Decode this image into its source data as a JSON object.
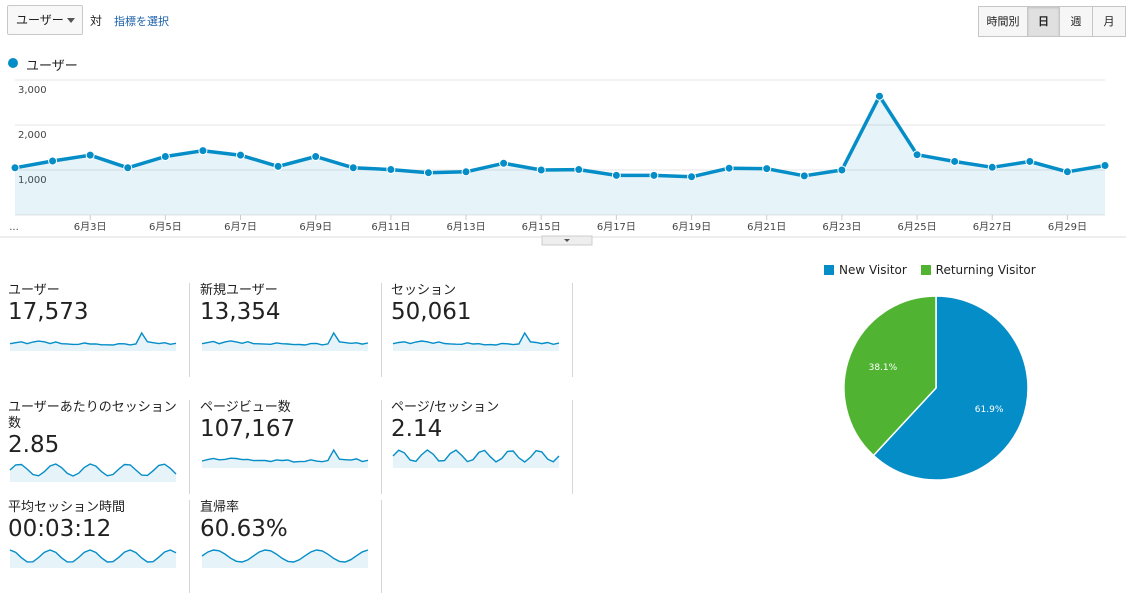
{
  "toolbar": {
    "metric_select": "ユーザー",
    "vs_label": "対",
    "select_metric_link": "指標を選択",
    "granularity": [
      {
        "label": "時間別",
        "active": false
      },
      {
        "label": "日",
        "active": true
      },
      {
        "label": "週",
        "active": false
      },
      {
        "label": "月",
        "active": false
      }
    ]
  },
  "main_legend": "ユーザー",
  "chart_data": {
    "type": "area",
    "series": [
      {
        "name": "ユーザー",
        "color": "#058dc7",
        "values": [
          1050,
          1200,
          1330,
          1050,
          1300,
          1430,
          1330,
          1080,
          1300,
          1050,
          1010,
          940,
          960,
          1150,
          1000,
          1010,
          880,
          880,
          850,
          1040,
          1030,
          870,
          1000,
          2640,
          1340,
          1190,
          1060,
          1190,
          960,
          1100
        ]
      }
    ],
    "x": [
      "6月1日",
      "6月2日",
      "6月3日",
      "6月4日",
      "6月5日",
      "6月6日",
      "6月7日",
      "6月8日",
      "6月9日",
      "6月10日",
      "6月11日",
      "6月12日",
      "6月13日",
      "6月14日",
      "6月15日",
      "6月16日",
      "6月17日",
      "6月18日",
      "6月19日",
      "6月20日",
      "6月21日",
      "6月22日",
      "6月23日",
      "6月24日",
      "6月25日",
      "6月26日",
      "6月27日",
      "6月28日",
      "6月29日",
      "6月30日"
    ],
    "x_tick_labels": [
      "...",
      "6月3日",
      "6月5日",
      "6月7日",
      "6月9日",
      "6月11日",
      "6月13日",
      "6月15日",
      "6月17日",
      "6月19日",
      "6月21日",
      "6月23日",
      "6月25日",
      "6月27日",
      "6月29日"
    ],
    "y_ticks": [
      "1,000",
      "2,000",
      "3,000"
    ],
    "ylim": [
      0,
      3000
    ],
    "grid": true
  },
  "tiles": [
    {
      "label": "ユーザー",
      "value": "17,573"
    },
    {
      "label": "新規ユーザー",
      "value": "13,354"
    },
    {
      "label": "セッション",
      "value": "50,061"
    },
    {
      "label": "ユーザーあたりのセッション数",
      "value": "2.85"
    },
    {
      "label": "ページビュー数",
      "value": "107,167"
    },
    {
      "label": "ページ/セッション",
      "value": "2.14"
    },
    {
      "label": "平均セッション時間",
      "value": "00:03:12"
    },
    {
      "label": "直帰率",
      "value": "60.63%"
    }
  ],
  "pie": {
    "type": "pie",
    "slices": [
      {
        "label": "New Visitor",
        "value": 61.9,
        "display": "61.9%",
        "color": "#058dc7"
      },
      {
        "label": "Returning Visitor",
        "value": 38.1,
        "display": "38.1%",
        "color": "#50b432"
      }
    ]
  }
}
